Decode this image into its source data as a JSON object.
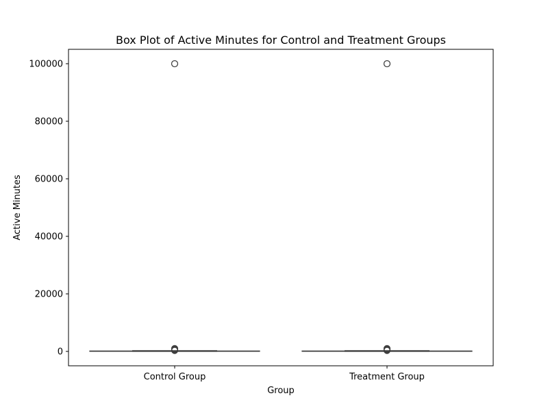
{
  "chart_data": {
    "type": "box",
    "title": "Box Plot of Active Minutes for Control and Treatment Groups",
    "xlabel": "Group",
    "ylabel": "Active Minutes",
    "categories": [
      "Control Group",
      "Treatment Group"
    ],
    "ylim": [
      -5000,
      105000
    ],
    "yticks": [
      0,
      20000,
      40000,
      60000,
      80000,
      100000
    ],
    "grid": false,
    "boxes": [
      {
        "name": "Control Group",
        "whisker_low": 0,
        "q1": 45,
        "median": 100,
        "q3": 160,
        "whisker_high": 280,
        "outliers": [
          300,
          400,
          500,
          600,
          700,
          800,
          900,
          1000,
          99990,
          100000
        ]
      },
      {
        "name": "Treatment Group",
        "whisker_low": 0,
        "q1": 45,
        "median": 100,
        "q3": 160,
        "whisker_high": 280,
        "outliers": [
          300,
          400,
          500,
          600,
          700,
          800,
          900,
          1000,
          99990,
          100000
        ]
      }
    ],
    "colors": {
      "box_fill": "#3a76af",
      "line": "#3f3f3f",
      "axes": "#000000"
    }
  }
}
